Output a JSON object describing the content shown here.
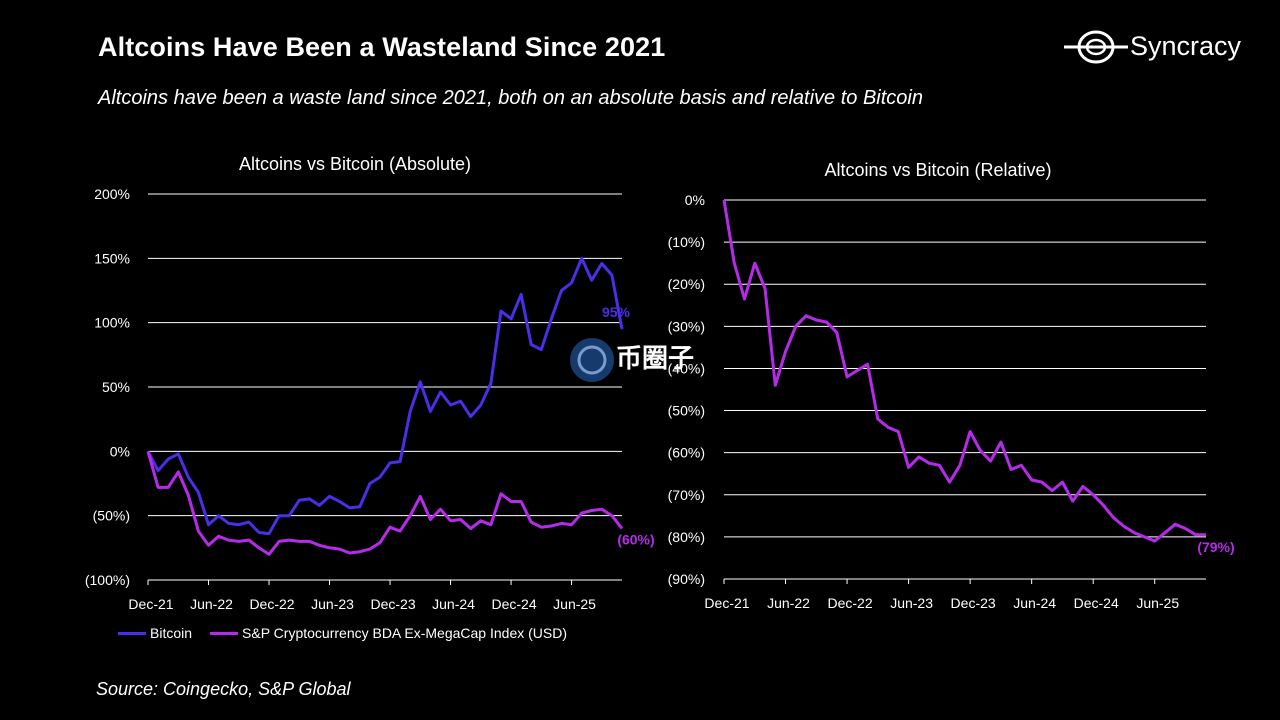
{
  "header": {
    "title": "Altcoins Have Been a Wasteland Since 2021",
    "subtitle": "Altcoins have been a waste land since 2021, both on an absolute basis and relative to Bitcoin"
  },
  "logo": {
    "text": "Syncracy"
  },
  "watermark": {
    "text": "币圈子"
  },
  "footer": {
    "source": "Source: Coingecko, S&P Global"
  },
  "colors": {
    "bitcoin": "#4a2ee8",
    "index": "#b62bea",
    "background": "#000000"
  },
  "chart_data": [
    {
      "type": "line",
      "title": "Altcoins vs Bitcoin (Absolute)",
      "ylim": [
        -100,
        200
      ],
      "y_ticks": [
        200,
        150,
        100,
        50,
        0,
        -50,
        -100
      ],
      "y_tick_labels": [
        "200%",
        "150%",
        "100%",
        "50%",
        "0%",
        "(50%)",
        "(100%)"
      ],
      "x_tick_labels": [
        "Dec-21",
        "Jun-22",
        "Dec-22",
        "Jun-23",
        "Dec-23",
        "Jun-24",
        "Dec-24",
        "Jun-25"
      ],
      "x_tick_index": [
        0,
        6,
        12,
        18,
        24,
        30,
        36,
        42
      ],
      "legend_position": "bottom",
      "series": [
        {
          "name": "Bitcoin",
          "color": "#4a2ee8",
          "end_label": "95%",
          "values": [
            0,
            -15,
            -6,
            -2,
            -20,
            -32,
            -57,
            -50,
            -56,
            -57,
            -55,
            -63,
            -64,
            -50,
            -50,
            -38,
            -37,
            -42,
            -35,
            -39,
            -44,
            -43,
            -25,
            -20,
            -9,
            -8,
            31,
            54,
            31,
            46,
            36,
            39,
            27,
            36,
            53,
            109,
            103,
            122,
            83,
            79,
            103,
            125,
            131,
            150,
            133,
            146,
            137,
            95
          ]
        },
        {
          "name": "S&P Cryptocurrency BDA Ex-MegaCap Index (USD)",
          "color": "#b62bea",
          "end_label": "(60%)",
          "values": [
            0,
            -28,
            -28,
            -16,
            -34,
            -62,
            -73,
            -66,
            -69,
            -70,
            -69,
            -75,
            -80,
            -70,
            -69,
            -70,
            -70,
            -73,
            -75,
            -76,
            -79,
            -78,
            -76,
            -71,
            -59,
            -62,
            -50,
            -35,
            -53,
            -45,
            -54,
            -53,
            -60,
            -54,
            -57,
            -33,
            -39,
            -39,
            -55,
            -59,
            -58,
            -56,
            -57,
            -48,
            -46,
            -45,
            -50,
            -60
          ]
        }
      ]
    },
    {
      "type": "line",
      "title": "Altcoins vs Bitcoin (Relative)",
      "ylim": [
        -90,
        0
      ],
      "y_ticks": [
        0,
        -10,
        -20,
        -30,
        -40,
        -50,
        -60,
        -70,
        -80,
        -90
      ],
      "y_tick_labels": [
        "0%",
        "(10%)",
        "(20%)",
        "(30%)",
        "(40%)",
        "(50%)",
        "(60%)",
        "(70%)",
        "(80%)",
        "(90%)"
      ],
      "x_tick_labels": [
        "Dec-21",
        "Jun-22",
        "Dec-22",
        "Jun-23",
        "Dec-23",
        "Jun-24",
        "Dec-24",
        "Jun-25"
      ],
      "x_tick_index": [
        0,
        6,
        12,
        18,
        24,
        30,
        36,
        42
      ],
      "series": [
        {
          "name": "S&P Cryptocurrency BDA Ex-MegaCap Index (USD)",
          "color": "#b62bea",
          "end_label": "(79%)",
          "values": [
            0,
            -15,
            -23.5,
            -15,
            -21,
            -44,
            -36,
            -30,
            -27.5,
            -28.5,
            -29,
            -31.5,
            -42,
            -40.5,
            -39,
            -52,
            -54,
            -55,
            -63.5,
            -61,
            -62.5,
            -63,
            -67,
            -63,
            -55,
            -59.5,
            -62,
            -57.5,
            -64,
            -63,
            -66.5,
            -67,
            -69,
            -67,
            -71.5,
            -68,
            -70,
            -72.5,
            -75.5,
            -77.5,
            -79,
            -80,
            -81,
            -79,
            -77,
            -78,
            -79.5,
            -79.5
          ]
        }
      ]
    }
  ]
}
